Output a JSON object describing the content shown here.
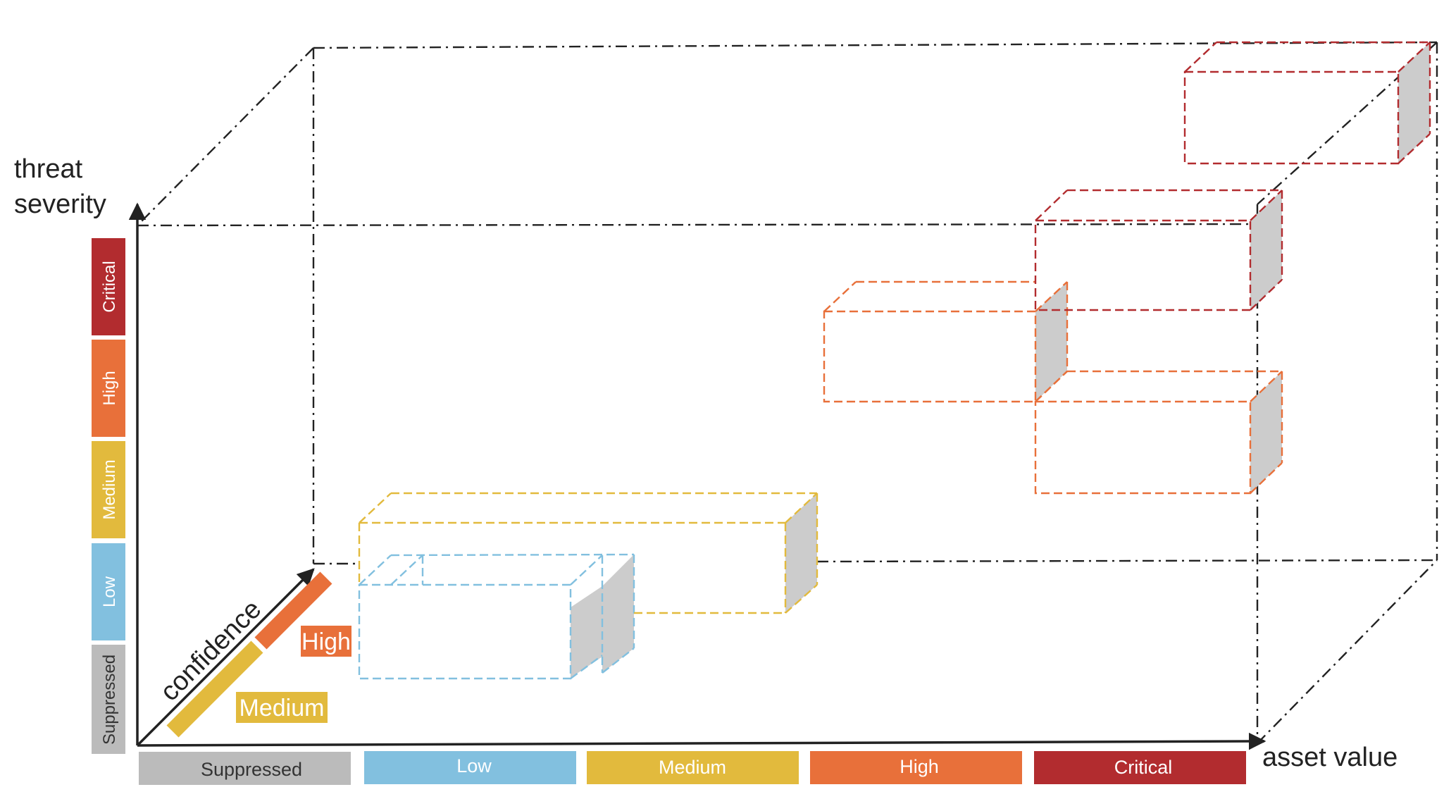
{
  "axes": {
    "y_label_line1": "threat",
    "y_label_line2": "severity",
    "x_label": "asset value",
    "z_label": "confidence"
  },
  "severity_levels": [
    "Critical",
    "High",
    "Medium",
    "Low",
    "Suppressed"
  ],
  "asset_levels": [
    "Suppressed",
    "Low",
    "Medium",
    "High",
    "Critical"
  ],
  "confidence_levels": [
    "High",
    "Medium"
  ],
  "colors": {
    "critical": "#b22c2f",
    "high": "#e8703a",
    "medium": "#e2ba3d",
    "low": "#82c0df",
    "suppressed": "#bbbbbb",
    "side_fill": "#cccccc",
    "axis": "#222222"
  }
}
